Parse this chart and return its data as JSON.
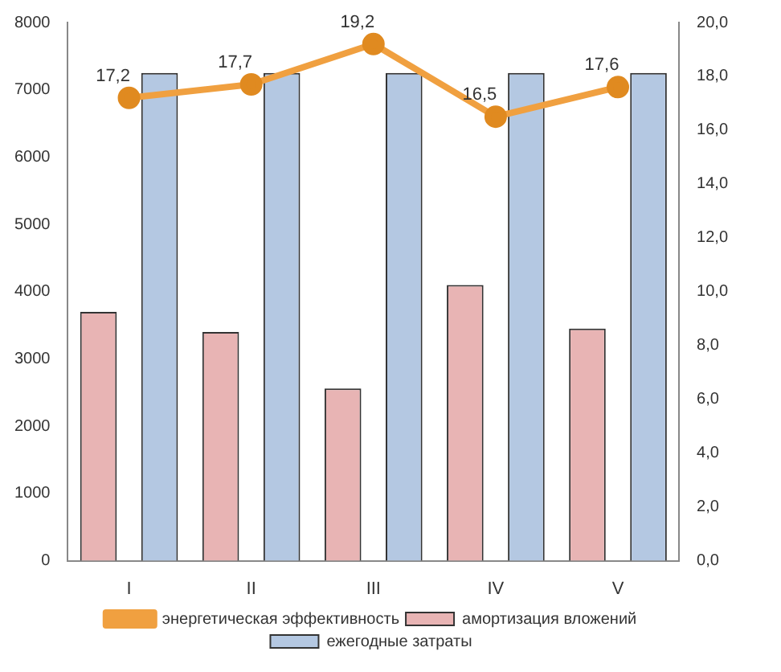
{
  "chart_data": {
    "type": "bar",
    "categories": [
      "I",
      "II",
      "III",
      "IV",
      "V"
    ],
    "series": [
      {
        "name": "амортизация вложений",
        "color": "#e8b4b4",
        "values": [
          3700,
          3400,
          2560,
          4100,
          3450
        ]
      },
      {
        "name": "ежегодные затраты",
        "color": "#b4c8e2",
        "values": [
          7250,
          7250,
          7250,
          7250,
          7250
        ]
      },
      {
        "name": "энергетическая эффективность",
        "type": "line",
        "axis": "y2",
        "color": "#f0a040",
        "marker": "circle",
        "values": [
          17.2,
          17.7,
          19.2,
          16.5,
          17.6
        ],
        "value_labels": [
          "17,2",
          "17,7",
          "19,2",
          "16,5",
          "17,6"
        ]
      }
    ],
    "ylim": [
      0,
      8000
    ],
    "yticks": [
      0,
      1000,
      2000,
      3000,
      4000,
      5000,
      6000,
      7000,
      8000
    ],
    "y2lim": [
      0,
      20
    ],
    "y2ticks": [
      {
        "value": 0,
        "label": "0,0"
      },
      {
        "value": 2,
        "label": "2,0"
      },
      {
        "value": 4,
        "label": "4,0"
      },
      {
        "value": 6,
        "label": "6,0"
      },
      {
        "value": 8,
        "label": "8,0"
      },
      {
        "value": 10,
        "label": "10,0"
      },
      {
        "value": 12,
        "label": "12,0"
      },
      {
        "value": 14,
        "label": "14,0"
      },
      {
        "value": 16,
        "label": "16,0"
      },
      {
        "value": 18,
        "label": "18,0"
      },
      {
        "value": 20,
        "label": "20,0"
      }
    ],
    "legend": "bottom",
    "grid": false
  }
}
